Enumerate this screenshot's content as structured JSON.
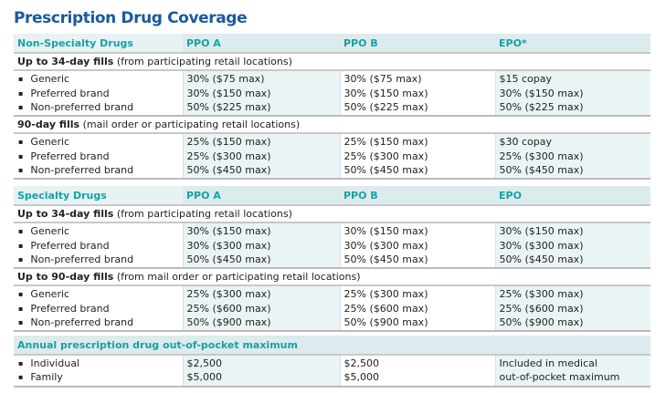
{
  "title": "Prescription Drug Coverage",
  "sections": [
    {
      "header": [
        "Non-Specialty Drugs",
        "PPO A",
        "PPO B",
        "EPO*"
      ],
      "groups": [
        {
          "bold": "Up to 34-day fills",
          "note": " (from participating retail locations)",
          "labels": [
            "Generic",
            "Preferred brand",
            "Non-preferred brand"
          ],
          "cols": [
            [
              "30% ($75 max)",
              "30% ($150 max)",
              "50% ($225 max)"
            ],
            [
              "30% ($75 max)",
              "30% ($150 max)",
              "50% ($225 max)"
            ],
            [
              "$15 copay",
              "30% ($150 max)",
              "50% ($225 max)"
            ]
          ]
        },
        {
          "bold": "90-day fills",
          "note": " (mail order or participating retail locations)",
          "labels": [
            "Generic",
            "Preferred brand",
            "Non-preferred brand"
          ],
          "cols": [
            [
              "25% ($150 max)",
              "25% ($300 max)",
              "50% ($450 max)"
            ],
            [
              "25% ($150 max)",
              "25% ($300 max)",
              "50% ($450 max)"
            ],
            [
              "$30 copay",
              "25% ($300 max)",
              "50% ($450 max)"
            ]
          ]
        }
      ]
    },
    {
      "header": [
        "Specialty Drugs",
        "PPO A",
        "PPO B",
        "EPO"
      ],
      "groups": [
        {
          "bold": "Up to 34-day fills",
          "note": " (from participating retail locations)",
          "labels": [
            "Generic",
            "Preferred brand",
            "Non-preferred brand"
          ],
          "cols": [
            [
              "30% ($150 max)",
              "30% ($300 max)",
              "50% ($450 max)"
            ],
            [
              "30% ($150 max)",
              "30% ($300 max)",
              "50% ($450 max)"
            ],
            [
              "30% ($150 max)",
              "30% ($300 max)",
              "50% ($450 max)"
            ]
          ]
        },
        {
          "bold": "Up to 90-day fills",
          "note": " (from mail order or participating retail locations)",
          "labels": [
            "Generic",
            "Preferred brand",
            "Non-preferred brand"
          ],
          "cols": [
            [
              "25% ($300 max)",
              "25% ($600 max)",
              "50% ($900 max)"
            ],
            [
              "25% ($300 max)",
              "25% ($600 max)",
              "50% ($900 max)"
            ],
            [
              "25% ($300 max)",
              "25% ($600 max)",
              "50% ($900 max)"
            ]
          ]
        }
      ]
    }
  ],
  "oop": {
    "header": "Annual prescription drug out-of-pocket maximum",
    "labels": [
      "Individual",
      "Family"
    ],
    "cols": [
      [
        "$2,500",
        "$5,000"
      ],
      [
        "$2,500",
        "$5,000"
      ],
      [
        "Included in medical",
        "out-of-pocket maximum"
      ]
    ]
  }
}
